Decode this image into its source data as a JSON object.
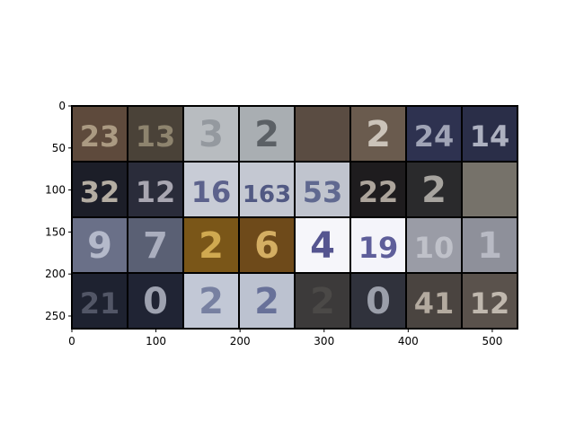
{
  "figure": {
    "x_ticks": [
      "0",
      "100",
      "200",
      "300",
      "400",
      "500"
    ],
    "y_ticks": [
      "0",
      "50",
      "100",
      "150",
      "200",
      "250"
    ]
  },
  "grid": {
    "rows": 4,
    "cols": 8,
    "tiles": [
      {
        "digits": "23",
        "bg": "#5e4a3c",
        "fg": "#b9a98f"
      },
      {
        "digits": "13",
        "bg": "#4a4238",
        "fg": "#9a9078"
      },
      {
        "digits": "3",
        "bg": "#b8bcc0",
        "fg": "#8e939a"
      },
      {
        "digits": "2",
        "bg": "#a9aeb2",
        "fg": "#4e5358"
      },
      {
        "digits": "",
        "bg": "#5a4c42",
        "fg": "#a69886"
      },
      {
        "digits": "2",
        "bg": "#6a5b4e",
        "fg": "#dcd6cc"
      },
      {
        "digits": "24",
        "bg": "#2e3250",
        "fg": "#b4b8c8"
      },
      {
        "digits": "14",
        "bg": "#2a2e48",
        "fg": "#c4c8d6"
      },
      {
        "digits": "32",
        "bg": "#1c1e28",
        "fg": "#cfc6b8"
      },
      {
        "digits": "12",
        "bg": "#2a2c3a",
        "fg": "#bfbcc6"
      },
      {
        "digits": "16",
        "bg": "#c8ccd6",
        "fg": "#4a5080"
      },
      {
        "digits": "163",
        "bg": "#c4c8d2",
        "fg": "#3e4676"
      },
      {
        "digits": "53",
        "bg": "#c0c4ce",
        "fg": "#505a86"
      },
      {
        "digits": "22",
        "bg": "#1e1c1e",
        "fg": "#c6beb2"
      },
      {
        "digits": "2",
        "bg": "#2a2a2c",
        "fg": "#bdbab4"
      },
      {
        "digits": "",
        "bg": "#76726a",
        "fg": "#2c2a28"
      },
      {
        "digits": "9",
        "bg": "#6a7088",
        "fg": "#c2c6d6"
      },
      {
        "digits": "7",
        "bg": "#5a6074",
        "fg": "#b8bccc"
      },
      {
        "digits": "2",
        "bg": "#7a5618",
        "fg": "#e0b85a"
      },
      {
        "digits": "6",
        "bg": "#6e4a1a",
        "fg": "#e6c070"
      },
      {
        "digits": "4",
        "bg": "#f6f6fa",
        "fg": "#3a3a7e"
      },
      {
        "digits": "19",
        "bg": "#f4f4fa",
        "fg": "#44448a"
      },
      {
        "digits": "10",
        "bg": "#9a9ca6",
        "fg": "#c6c8d0"
      },
      {
        "digits": "1",
        "bg": "#8e909a",
        "fg": "#c0c2cc"
      },
      {
        "digits": "21",
        "bg": "#1e2230",
        "fg": "#5c6070"
      },
      {
        "digits": "0",
        "bg": "#202434",
        "fg": "#b4b8c6"
      },
      {
        "digits": "2",
        "bg": "#c2c8d6",
        "fg": "#6a7498"
      },
      {
        "digits": "2",
        "bg": "#bcc2d0",
        "fg": "#5a6490"
      },
      {
        "digits": "2",
        "bg": "#3c3a3a",
        "fg": "#4e4c4a"
      },
      {
        "digits": "0",
        "bg": "#30323c",
        "fg": "#aeb2be"
      },
      {
        "digits": "41",
        "bg": "#4a4440",
        "fg": "#c6bcb0"
      },
      {
        "digits": "12",
        "bg": "#5a524c",
        "fg": "#d2cac0"
      }
    ]
  }
}
